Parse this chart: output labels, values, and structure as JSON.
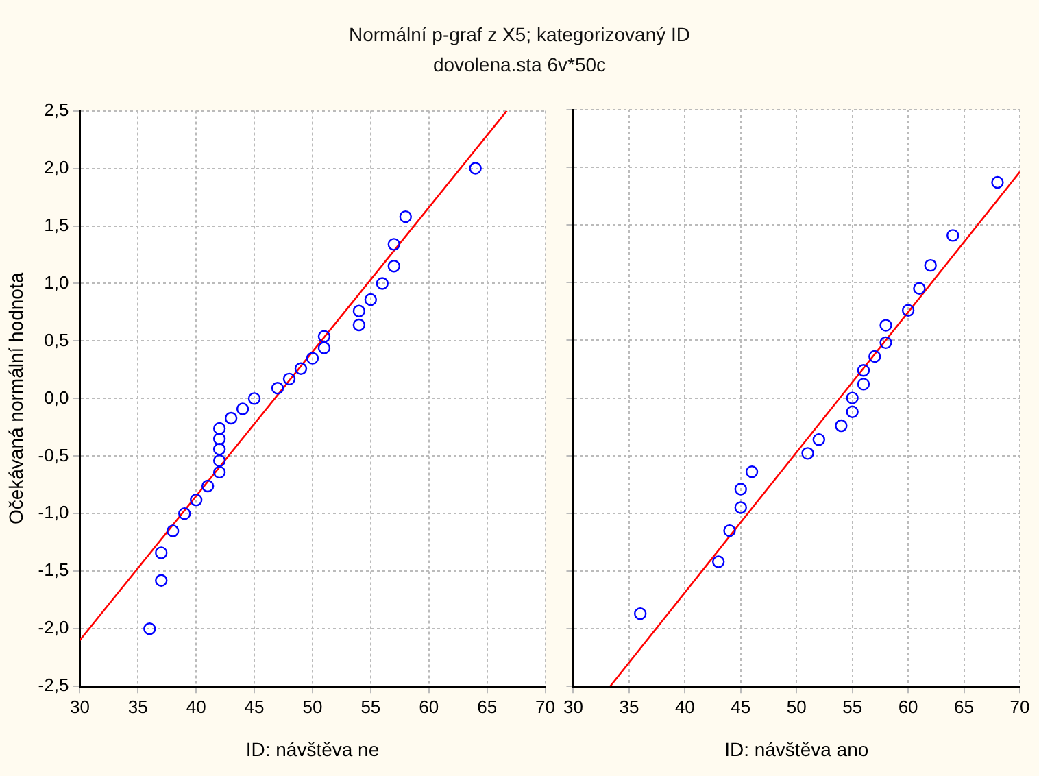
{
  "chart_data": [
    {
      "type": "scatter",
      "title": "Normální p-graf z X5; kategorizovaný ID",
      "subtitle": "dovolena.sta 6v*50c",
      "xlabel": "ID: návštěva ne",
      "ylabel": "Očekávaná normální hodnota",
      "grid": true,
      "xlim": [
        30,
        70
      ],
      "xticks": [
        30,
        35,
        40,
        45,
        50,
        55,
        60,
        65,
        70
      ],
      "ylim": [
        -2.5,
        2.5
      ],
      "yticks": [
        {
          "value": -2.5,
          "label": "-2,5"
        },
        {
          "value": -2,
          "label": "-2,0"
        },
        {
          "value": -1.5,
          "label": "-1,5"
        },
        {
          "value": -1,
          "label": "-1,0"
        },
        {
          "value": -0.5,
          "label": "-0,5"
        },
        {
          "value": 0,
          "label": "0,0"
        },
        {
          "value": 0.5,
          "label": "0,5"
        },
        {
          "value": 1,
          "label": "1,0"
        },
        {
          "value": 1.5,
          "label": "1,5"
        },
        {
          "value": 2,
          "label": "2,0"
        },
        {
          "value": 2.5,
          "label": "2,5"
        }
      ],
      "series": [
        {
          "marker": "circle",
          "color": "#0000ff",
          "x": [
            36,
            37,
            37,
            38,
            39,
            40,
            41,
            42,
            42,
            42,
            42,
            42,
            43,
            44,
            45,
            47,
            48,
            49,
            50,
            51,
            51,
            54,
            54,
            55,
            56,
            57,
            57,
            58,
            64
          ],
          "values": [
            -2.0,
            -1.58,
            -1.34,
            -1.15,
            -1.0,
            -0.88,
            -0.76,
            -0.64,
            -0.54,
            -0.44,
            -0.35,
            -0.26,
            -0.17,
            -0.09,
            0.0,
            0.09,
            0.17,
            0.26,
            0.35,
            0.44,
            0.54,
            0.64,
            0.76,
            0.86,
            1.0,
            1.15,
            1.34,
            1.58,
            2.0
          ]
        },
        {
          "type": "line",
          "marker": "none",
          "color": "#ff0000",
          "line_style": "solid",
          "x": [
            30,
            66.7
          ],
          "values": [
            -2.1,
            2.5
          ]
        }
      ]
    },
    {
      "type": "scatter",
      "xlabel": "ID: návštěva ano",
      "grid": true,
      "tick_labels": "x",
      "xlim": [
        30,
        70
      ],
      "xticks": [
        30,
        35,
        40,
        45,
        50,
        55,
        60,
        65,
        70
      ],
      "ylim": [
        -2.5,
        2.5
      ],
      "yticks": [
        -2.5,
        -2,
        -1.5,
        -1,
        -0.5,
        0,
        0.5,
        1,
        1.5,
        2,
        2.5
      ],
      "series": [
        {
          "marker": "circle",
          "color": "#0000ff",
          "x": [
            36,
            43,
            44,
            45,
            45,
            46,
            51,
            52,
            54,
            55,
            55,
            56,
            56,
            57,
            58,
            58,
            60,
            61,
            62,
            64,
            68
          ],
          "values": [
            -1.87,
            -1.42,
            -1.15,
            -0.95,
            -0.79,
            -0.64,
            -0.48,
            -0.36,
            -0.24,
            -0.12,
            0.0,
            0.12,
            0.24,
            0.36,
            0.48,
            0.63,
            0.76,
            0.95,
            1.15,
            1.41,
            1.87
          ]
        },
        {
          "type": "line",
          "marker": "none",
          "color": "#ff0000",
          "line_style": "solid",
          "x": [
            33.3,
            70
          ],
          "values": [
            -2.5,
            1.96
          ]
        }
      ]
    }
  ]
}
